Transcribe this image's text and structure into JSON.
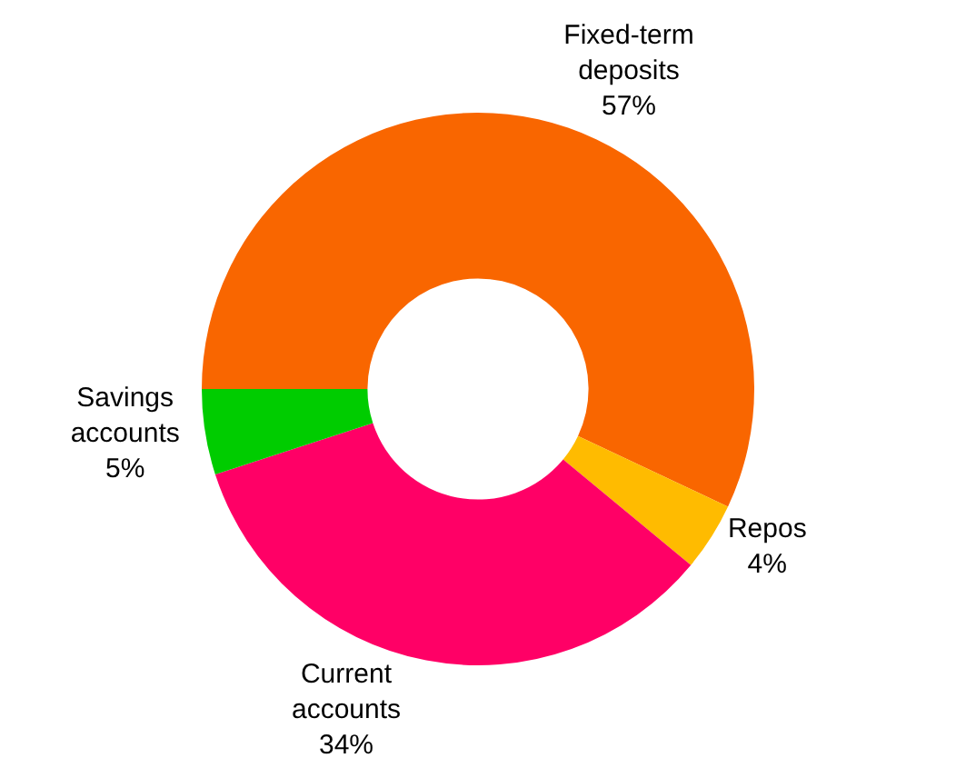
{
  "chart_data": {
    "type": "donut",
    "categories": [
      "Fixed-term deposits",
      "Repos",
      "Current accounts",
      "Savings accounts"
    ],
    "values": [
      57,
      4,
      34,
      5
    ],
    "value_labels": [
      "57%",
      "4%",
      "34%",
      "5%"
    ],
    "colors": [
      "#f96600",
      "#ffbb00",
      "#ff0066",
      "#00cc00"
    ],
    "legend": false
  }
}
